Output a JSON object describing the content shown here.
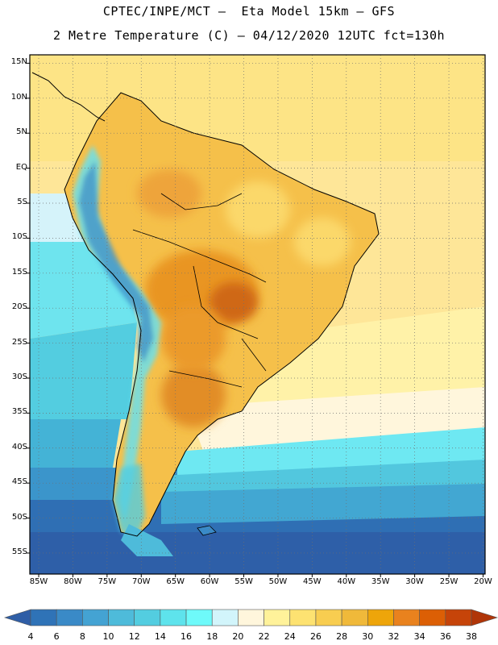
{
  "header": {
    "line1": "CPTEC/INPE/MCT –  Eta Model 15km – GFS",
    "line2": "2 Metre Temperature (C) – 04/12/2020 12UTC fct=130h"
  },
  "map": {
    "lat_labels": [
      "15N",
      "10N",
      "5N",
      "EQ",
      "5S",
      "10S",
      "15S",
      "20S",
      "25S",
      "30S",
      "35S",
      "40S",
      "45S",
      "50S",
      "55S"
    ],
    "lon_labels": [
      "85W",
      "80W",
      "75W",
      "70W",
      "65W",
      "60W",
      "55W",
      "50W",
      "45W",
      "40W",
      "35W",
      "30W",
      "25W",
      "20W"
    ],
    "lat_values": [
      15,
      10,
      5,
      0,
      -5,
      -10,
      -15,
      -20,
      -25,
      -30,
      -35,
      -40,
      -45,
      -50,
      -55
    ],
    "lon_values": [
      -85,
      -80,
      -75,
      -70,
      -65,
      -60,
      -55,
      -50,
      -45,
      -40,
      -35,
      -30,
      -25,
      -20
    ]
  },
  "colorbar": {
    "labels": [
      "4",
      "6",
      "8",
      "10",
      "12",
      "14",
      "16",
      "18",
      "20",
      "22",
      "24",
      "26",
      "28",
      "30",
      "32",
      "34",
      "36",
      "38"
    ],
    "colors": [
      "#2f5ea6",
      "#2f73b7",
      "#3a8ac7",
      "#44a3d3",
      "#4ebbda",
      "#53cde0",
      "#5ee3ec",
      "#6efafa",
      "#d2f5fb",
      "#fff6dc",
      "#fff29a",
      "#fde271",
      "#f8cd50",
      "#f0b93a",
      "#eea50a",
      "#e9821e",
      "#dc5f05",
      "#c64409",
      "#b03508"
    ],
    "min_label": "4",
    "max_label": "38"
  }
}
